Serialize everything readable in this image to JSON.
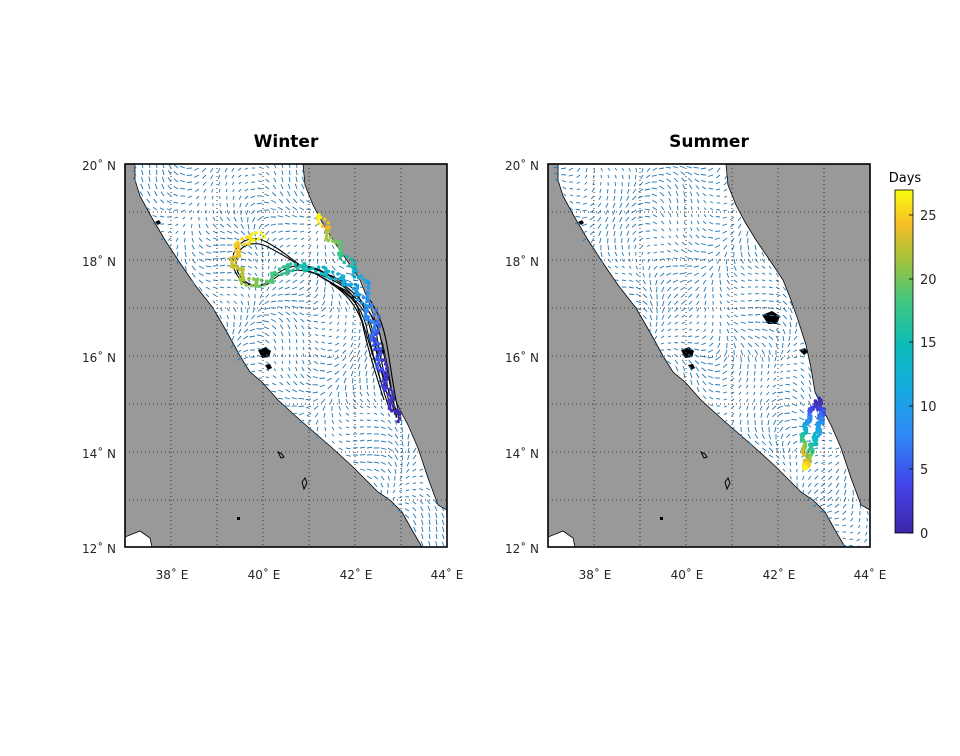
{
  "panels": [
    {
      "id": "winter",
      "title": "Winter",
      "lat_ticks": [
        "20˚ N",
        "18˚ N",
        "16˚ N",
        "14˚ N",
        "12˚ N"
      ],
      "lon_ticks": [
        "38˚ E",
        "40˚ E",
        "42˚ E",
        "44˚ E"
      ]
    },
    {
      "id": "summer",
      "title": "Summer",
      "lat_ticks": [
        "20˚ N",
        "18˚ N",
        "16˚ N",
        "14˚ N",
        "12˚ N"
      ],
      "lon_ticks": [
        "38˚ E",
        "40˚ E",
        "42˚ E",
        "44˚ E"
      ]
    }
  ],
  "colorbar": {
    "label": "Days",
    "ticks": [
      "25",
      "20",
      "15",
      "10",
      "5",
      "0"
    ],
    "range": [
      0,
      27
    ],
    "colormap": "parula"
  },
  "colors": {
    "land": "#999999",
    "sea": "#ffffff",
    "current_vectors": "#1f77b4",
    "trajectories": "#000000",
    "grid": "#333333"
  },
  "chart_data": [
    {
      "type": "scatter",
      "title": "Winter",
      "x_axis": "longitude (°E)",
      "y_axis": "latitude (°N)",
      "xlim": [
        37,
        44
      ],
      "ylim": [
        12,
        20
      ],
      "grid": true,
      "layers": [
        "land",
        "current vectors",
        "drifter trajectories",
        "particles colored by days"
      ],
      "particle_release": {
        "lon": 42.9,
        "lat": 14.9
      },
      "particle_age_range_days": [
        0,
        27
      ]
    },
    {
      "type": "scatter",
      "title": "Summer",
      "x_axis": "longitude (°E)",
      "y_axis": "latitude (°N)",
      "xlim": [
        37,
        44
      ],
      "ylim": [
        12,
        20
      ],
      "grid": true,
      "layers": [
        "land",
        "current vectors",
        "particles colored by days"
      ],
      "particle_release": {
        "lon": 42.9,
        "lat": 14.9
      },
      "particle_age_range_days": [
        0,
        27
      ]
    }
  ]
}
